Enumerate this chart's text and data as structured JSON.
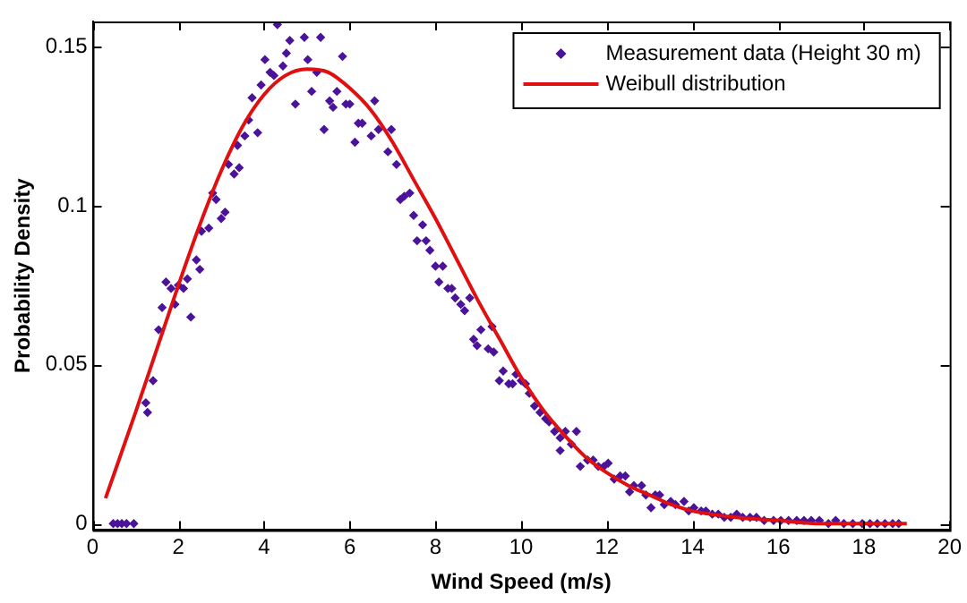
{
  "chart_data": {
    "type": "scatter",
    "xlabel": "Wind Speed (m/s)",
    "ylabel": "Probability Density",
    "xlim": [
      0,
      20
    ],
    "ylim": [
      -0.002,
      0.158
    ],
    "xticks": [
      0,
      2,
      4,
      6,
      8,
      10,
      12,
      14,
      16,
      18,
      20
    ],
    "yticks": [
      0,
      0.05,
      {
        "value": 0.1,
        "label": "0.1"
      },
      0.15
    ],
    "legend": "top right",
    "series": [
      {
        "name": "Measurement data (Height 30 m)",
        "marker": "diamond",
        "color": "#4b1399",
        "x": [
          0.48,
          0.58,
          0.68,
          0.79,
          0.96,
          1.24,
          1.28,
          1.41,
          1.54,
          1.62,
          1.71,
          1.83,
          1.92,
          2.0,
          2.12,
          2.21,
          2.29,
          2.42,
          2.5,
          2.54,
          2.71,
          2.8,
          2.88,
          3.0,
          3.09,
          3.17,
          3.3,
          3.38,
          3.42,
          3.55,
          3.64,
          3.72,
          3.85,
          3.93,
          4.02,
          4.14,
          4.23,
          4.31,
          4.44,
          4.52,
          4.6,
          4.73,
          4.94,
          5.02,
          5.11,
          5.23,
          5.32,
          5.4,
          5.53,
          5.61,
          5.7,
          5.83,
          5.91,
          6.0,
          6.12,
          6.2,
          6.29,
          6.5,
          6.58,
          6.67,
          6.89,
          6.97,
          7.09,
          7.18,
          7.27,
          7.4,
          7.49,
          7.57,
          7.7,
          7.78,
          7.87,
          8.0,
          8.08,
          8.17,
          8.29,
          8.38,
          8.46,
          8.59,
          8.68,
          8.8,
          8.89,
          8.97,
          9.06,
          9.23,
          9.32,
          9.36,
          9.49,
          9.58,
          9.71,
          9.8,
          9.88,
          10.0,
          10.1,
          10.19,
          10.31,
          10.44,
          10.57,
          10.65,
          10.78,
          10.91,
          10.91,
          11.03,
          11.17,
          11.29,
          11.38,
          11.55,
          11.68,
          11.8,
          11.93,
          12.03,
          12.17,
          12.31,
          12.43,
          12.53,
          12.63,
          12.81,
          12.91,
          13.03,
          13.13,
          13.23,
          13.34,
          13.49,
          13.6,
          13.8,
          13.91,
          14.03,
          14.2,
          14.31,
          14.46,
          14.6,
          14.74,
          14.89,
          15.03,
          15.17,
          15.34,
          15.49,
          15.67,
          15.89,
          16.06,
          16.24,
          16.43,
          16.6,
          16.77,
          16.96,
          17.17,
          17.34,
          17.53,
          17.74,
          17.96,
          18.14,
          18.31,
          18.49,
          18.67,
          18.81
        ],
        "values": [
          0,
          0,
          0,
          0,
          0,
          0.038,
          0.035,
          0.045,
          0.061,
          0.068,
          0.076,
          0.074,
          0.069,
          0.075,
          0.074,
          0.077,
          0.065,
          0.083,
          0.08,
          0.092,
          0.093,
          0.104,
          0.102,
          0.096,
          0.098,
          0.113,
          0.11,
          0.119,
          0.112,
          0.122,
          0.127,
          0.134,
          0.123,
          0.138,
          0.146,
          0.142,
          0.141,
          0.157,
          0.144,
          0.148,
          0.152,
          0.132,
          0.153,
          0.146,
          0.136,
          0.142,
          0.153,
          0.124,
          0.133,
          0.131,
          0.136,
          0.147,
          0.132,
          0.132,
          0.12,
          0.126,
          0.126,
          0.122,
          0.133,
          0.124,
          0.117,
          0.124,
          0.113,
          0.102,
          0.103,
          0.104,
          0.097,
          0.089,
          0.094,
          0.089,
          0.086,
          0.081,
          0.076,
          0.081,
          0.074,
          0.074,
          0.071,
          0.069,
          0.067,
          0.071,
          0.058,
          0.056,
          0.061,
          0.055,
          0.062,
          0.054,
          0.045,
          0.048,
          0.044,
          0.044,
          0.047,
          0.045,
          0.044,
          0.041,
          0.037,
          0.035,
          0.033,
          0.032,
          0.029,
          0.027,
          0.023,
          0.029,
          0.025,
          0.029,
          0.018,
          0.02,
          0.02,
          0.018,
          0.018,
          0.019,
          0.014,
          0.015,
          0.015,
          0.01,
          0.012,
          0.012,
          0.009,
          0.005,
          0.009,
          0.009,
          0.006,
          0.007,
          0.006,
          0.007,
          0.004,
          0.005,
          0.004,
          0.004,
          0.003,
          0.003,
          0.002,
          0.002,
          0.003,
          0.002,
          0.002,
          0.002,
          0.001,
          0.001,
          0.001,
          0.001,
          0.001,
          0.001,
          0.001,
          0.001,
          0,
          0.001,
          0,
          0,
          0,
          0,
          0,
          0,
          0,
          0
        ]
      },
      {
        "name": "Weibull distribution",
        "type": "line",
        "marker": "none",
        "color": "#e01010",
        "x": [
          0.3,
          1,
          1.5,
          2,
          2.5,
          3,
          3.5,
          4,
          4.5,
          5,
          5.5,
          6,
          6.5,
          7,
          7.5,
          8,
          8.5,
          9,
          9.5,
          10,
          10.5,
          11,
          11.5,
          12,
          12.5,
          13,
          13.5,
          14,
          15,
          16,
          17,
          18,
          19
        ],
        "values": [
          0.008,
          0.035,
          0.055,
          0.075,
          0.094,
          0.111,
          0.125,
          0.135,
          0.141,
          0.143,
          0.142,
          0.137,
          0.13,
          0.12,
          0.108,
          0.096,
          0.083,
          0.07,
          0.058,
          0.046,
          0.036,
          0.028,
          0.021,
          0.016,
          0.012,
          0.009,
          0.006,
          0.004,
          0.002,
          0.001,
          0,
          0,
          0
        ]
      }
    ]
  }
}
